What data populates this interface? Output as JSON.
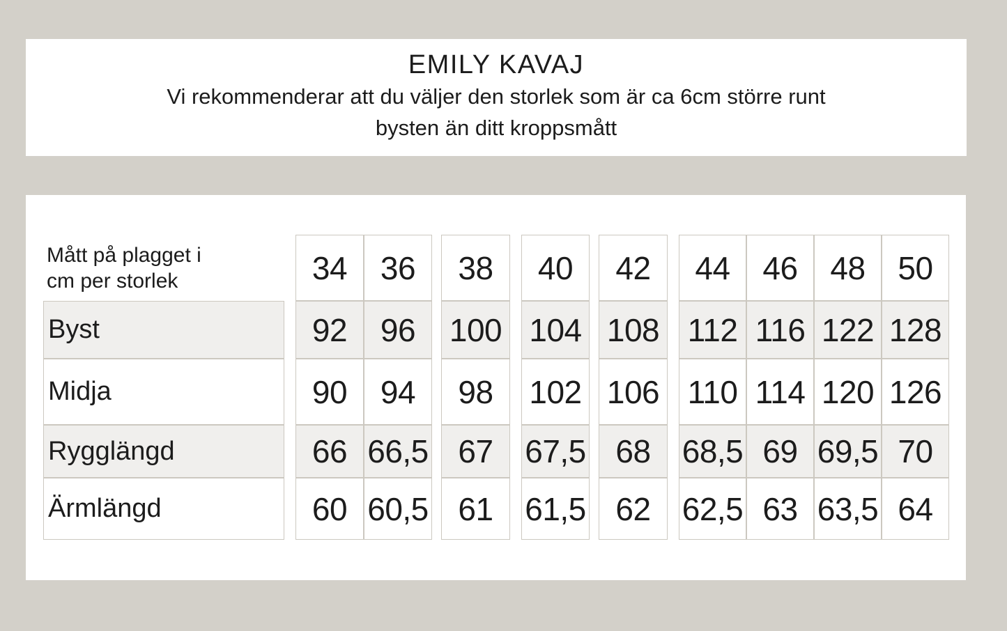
{
  "colors": {
    "page_background": "#d3d0c9",
    "panel_background": "#ffffff",
    "cell_border": "#ccc8c0",
    "shaded_row": "#f0efed",
    "text": "#1c1c1c"
  },
  "header": {
    "title": "EMILY KAVAJ",
    "subtitle_line1": "Vi rekommenderar att du väljer den storlek som är ca 6cm större runt",
    "subtitle_line2": "bysten än ditt kroppsmått"
  },
  "size_table": {
    "corner_label": "Mått på plagget i cm per storlek",
    "sizes": [
      "34",
      "36",
      "38",
      "40",
      "42",
      "44",
      "46",
      "48",
      "50"
    ],
    "rows": [
      {
        "label": "Byst",
        "values": [
          "92",
          "96",
          "100",
          "104",
          "108",
          "112",
          "116",
          "122",
          "128"
        ]
      },
      {
        "label": "Midja",
        "values": [
          "90",
          "94",
          "98",
          "102",
          "106",
          "110",
          "114",
          "120",
          "126"
        ]
      },
      {
        "label": "Rygglängd",
        "values": [
          "66",
          "66,5",
          "67",
          "67,5",
          "68",
          "68,5",
          "69",
          "69,5",
          "70"
        ]
      },
      {
        "label": "Ärmlängd",
        "values": [
          "60",
          "60,5",
          "61",
          "61,5",
          "62",
          "62,5",
          "63",
          "63,5",
          "64"
        ]
      }
    ]
  }
}
